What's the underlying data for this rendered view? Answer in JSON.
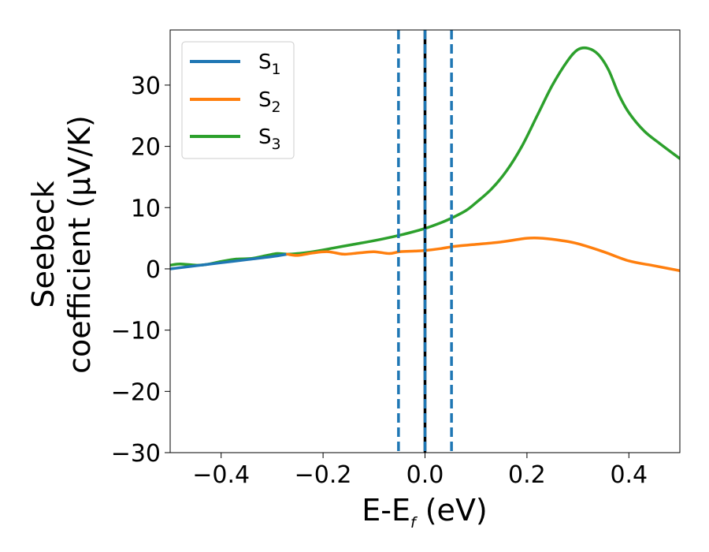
{
  "chart_data": {
    "type": "line",
    "xlabel": {
      "main": "E-E",
      "sub": "f",
      "unit": " (eV)"
    },
    "ylabel": {
      "line1": "Seebeck",
      "line2": "coefficient  (μV/K)"
    },
    "xlim": [
      -0.5,
      0.5
    ],
    "ylim": [
      -30,
      39
    ],
    "xticks": [
      -0.4,
      -0.2,
      0.0,
      0.2,
      0.4
    ],
    "xtick_labels": [
      "−0.4",
      "−0.2",
      "0.0",
      "0.2",
      "0.4"
    ],
    "yticks": [
      -30,
      -20,
      -10,
      0,
      10,
      20,
      30
    ],
    "ytick_labels": [
      "−30",
      "−20",
      "−10",
      "0",
      "10",
      "20",
      "30"
    ],
    "legend_position": "top-left",
    "series": [
      {
        "name": "S",
        "sub": "1",
        "color": "#1f77b4",
        "x": [
          -0.5,
          -0.45,
          -0.4,
          -0.35,
          -0.3,
          -0.27
        ],
        "y": [
          0.0,
          0.5,
          1.0,
          1.5,
          2.0,
          2.4
        ]
      },
      {
        "name": "S",
        "sub": "2",
        "color": "#ff7f0e",
        "x": [
          -0.27,
          -0.25,
          -0.22,
          -0.19,
          -0.16,
          -0.13,
          -0.1,
          -0.07,
          -0.05,
          -0.02,
          0.0,
          0.03,
          0.06,
          0.1,
          0.15,
          0.2,
          0.23,
          0.27,
          0.3,
          0.35,
          0.4,
          0.45,
          0.5
        ],
        "y": [
          2.4,
          2.2,
          2.6,
          2.8,
          2.4,
          2.6,
          2.8,
          2.5,
          2.8,
          2.9,
          3.0,
          3.3,
          3.7,
          4.0,
          4.4,
          5.0,
          5.0,
          4.6,
          4.1,
          2.8,
          1.3,
          0.5,
          -0.3
        ]
      },
      {
        "name": "S",
        "sub": "3",
        "color": "#2ca02c",
        "x": [
          -0.5,
          -0.48,
          -0.45,
          -0.43,
          -0.4,
          -0.37,
          -0.34,
          -0.31,
          -0.29,
          -0.27,
          -0.25,
          -0.22,
          -0.18,
          -0.14,
          -0.1,
          -0.06,
          -0.03,
          0.0,
          0.03,
          0.05,
          0.08,
          0.1,
          0.13,
          0.16,
          0.19,
          0.22,
          0.25,
          0.28,
          0.3,
          0.32,
          0.34,
          0.36,
          0.38,
          0.4,
          0.43,
          0.46,
          0.5
        ],
        "y": [
          0.6,
          0.8,
          0.6,
          0.7,
          1.2,
          1.6,
          1.7,
          2.2,
          2.5,
          2.4,
          2.5,
          2.8,
          3.4,
          4.0,
          4.6,
          5.3,
          5.9,
          6.6,
          7.5,
          8.2,
          9.5,
          10.8,
          13.0,
          16.0,
          20.0,
          25.0,
          30.0,
          34.0,
          35.8,
          36.0,
          35.0,
          32.5,
          28.5,
          25.5,
          22.5,
          20.5,
          18.0
        ]
      }
    ],
    "vlines": [
      {
        "x": -0.052,
        "style": "dashed",
        "color": "#1f77b4"
      },
      {
        "x": 0.0,
        "style": "solid",
        "color": "#000000"
      },
      {
        "x": 0.0,
        "style": "dashed",
        "color": "#1f77b4"
      },
      {
        "x": 0.052,
        "style": "dashed",
        "color": "#1f77b4"
      }
    ]
  }
}
